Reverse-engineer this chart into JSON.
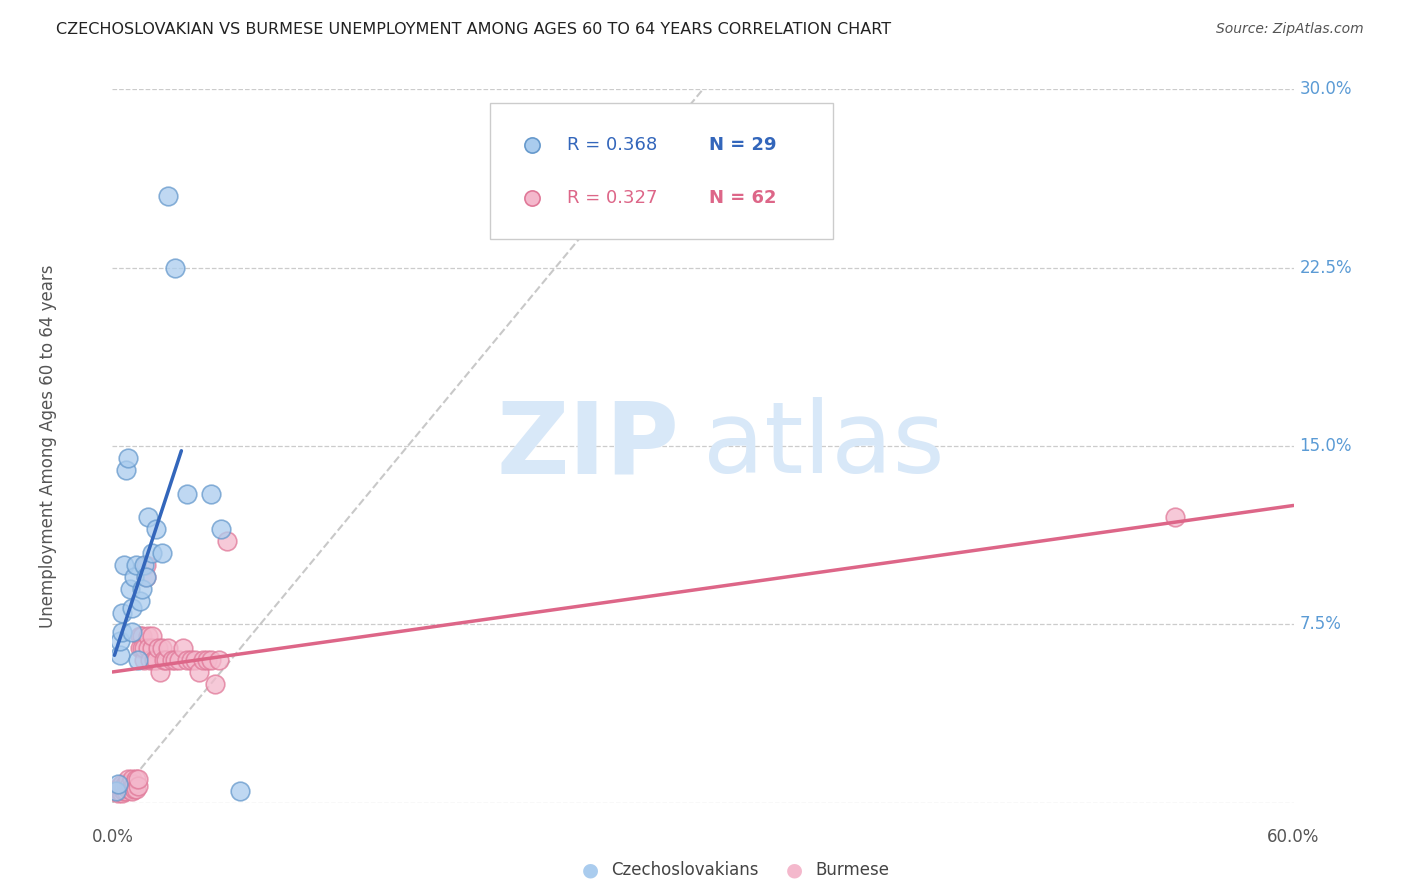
{
  "title": "CZECHOSLOVAKIAN VS BURMESE UNEMPLOYMENT AMONG AGES 60 TO 64 YEARS CORRELATION CHART",
  "source": "Source: ZipAtlas.com",
  "ylabel": "Unemployment Among Ages 60 to 64 years",
  "background_color": "#ffffff",
  "grid_color": "#cccccc",
  "title_color": "#222222",
  "right_axis_color": "#5b9bd5",
  "xlim": [
    0.0,
    0.6
  ],
  "ylim": [
    0.0,
    0.3
  ],
  "yticks": [
    0.0,
    0.075,
    0.15,
    0.225,
    0.3
  ],
  "ytick_labels": [
    "",
    "7.5%",
    "15.0%",
    "22.5%",
    "30.0%"
  ],
  "legend_blue_r": "R = 0.368",
  "legend_blue_n": "N = 29",
  "legend_pink_r": "R = 0.327",
  "legend_pink_n": "N = 62",
  "legend_label_blue": "Czechoslovakians",
  "legend_label_pink": "Burmese",
  "blue_scatter_x": [
    0.002,
    0.003,
    0.004,
    0.004,
    0.005,
    0.005,
    0.006,
    0.007,
    0.008,
    0.009,
    0.01,
    0.01,
    0.011,
    0.012,
    0.013,
    0.014,
    0.015,
    0.016,
    0.017,
    0.018,
    0.02,
    0.022,
    0.025,
    0.028,
    0.032,
    0.038,
    0.05,
    0.055,
    0.065
  ],
  "blue_scatter_y": [
    0.005,
    0.008,
    0.062,
    0.068,
    0.072,
    0.08,
    0.1,
    0.14,
    0.145,
    0.09,
    0.072,
    0.082,
    0.095,
    0.1,
    0.06,
    0.085,
    0.09,
    0.1,
    0.095,
    0.12,
    0.105,
    0.115,
    0.105,
    0.255,
    0.225,
    0.13,
    0.13,
    0.115,
    0.005
  ],
  "pink_scatter_x": [
    0.002,
    0.003,
    0.003,
    0.004,
    0.004,
    0.005,
    0.005,
    0.005,
    0.006,
    0.006,
    0.007,
    0.007,
    0.008,
    0.008,
    0.008,
    0.009,
    0.009,
    0.01,
    0.01,
    0.01,
    0.011,
    0.011,
    0.012,
    0.012,
    0.013,
    0.013,
    0.014,
    0.014,
    0.015,
    0.015,
    0.016,
    0.016,
    0.017,
    0.017,
    0.018,
    0.018,
    0.019,
    0.02,
    0.02,
    0.021,
    0.022,
    0.023,
    0.024,
    0.025,
    0.026,
    0.027,
    0.028,
    0.03,
    0.032,
    0.034,
    0.036,
    0.038,
    0.04,
    0.042,
    0.044,
    0.046,
    0.048,
    0.05,
    0.052,
    0.054,
    0.058,
    0.54
  ],
  "pink_scatter_y": [
    0.005,
    0.004,
    0.006,
    0.005,
    0.007,
    0.004,
    0.006,
    0.008,
    0.005,
    0.007,
    0.005,
    0.008,
    0.006,
    0.008,
    0.01,
    0.006,
    0.008,
    0.005,
    0.007,
    0.01,
    0.006,
    0.008,
    0.006,
    0.01,
    0.007,
    0.01,
    0.07,
    0.065,
    0.07,
    0.065,
    0.06,
    0.065,
    0.1,
    0.095,
    0.07,
    0.065,
    0.06,
    0.065,
    0.07,
    0.06,
    0.06,
    0.065,
    0.055,
    0.065,
    0.06,
    0.06,
    0.065,
    0.06,
    0.06,
    0.06,
    0.065,
    0.06,
    0.06,
    0.06,
    0.055,
    0.06,
    0.06,
    0.06,
    0.05,
    0.06,
    0.11,
    0.12
  ],
  "blue_line_x": [
    0.001,
    0.035
  ],
  "blue_line_y": [
    0.062,
    0.148
  ],
  "pink_line_x": [
    0.0,
    0.6
  ],
  "pink_line_y": [
    0.055,
    0.125
  ],
  "diag_line_x": [
    0.0,
    0.3
  ],
  "diag_line_y": [
    0.0,
    0.3
  ],
  "scatter_size": 180,
  "blue_face": "#aaccee",
  "blue_edge": "#6699cc",
  "pink_face": "#f4b8cc",
  "pink_edge": "#e07898",
  "blue_line_color": "#3366bb",
  "pink_line_color": "#dd6688",
  "diag_color": "#bbbbbb",
  "watermark_color": "#d8e8f8"
}
